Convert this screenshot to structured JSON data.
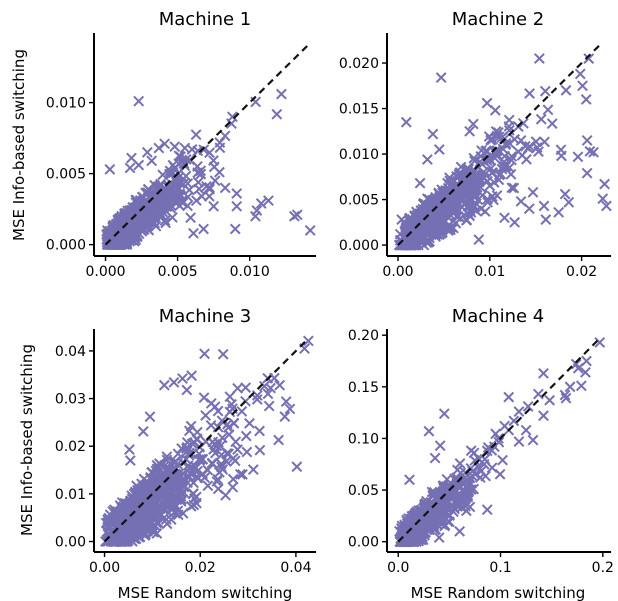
{
  "colors": {
    "marker": "#7570b3",
    "diagonal": "#111111"
  },
  "chart_data": [
    {
      "type": "scatter",
      "title": "Machine 1",
      "xlabel": "",
      "ylabel": "MSE Info-based switching",
      "xlim": [
        -0.0008,
        0.0146
      ],
      "ylim": [
        -0.0008,
        0.0149
      ],
      "xticks": [
        0.0,
        0.005,
        0.01
      ],
      "xticklabels": [
        "0.000",
        "0.005",
        "0.010"
      ],
      "yticks": [
        0.0,
        0.005,
        0.01
      ],
      "yticklabels": [
        "0.000",
        "0.005",
        "0.010"
      ],
      "diagonal": [
        0,
        0.0142
      ],
      "marker": "x",
      "cluster": {
        "n": 620,
        "xscale": 0.0025,
        "yscale": 0.0021
      },
      "points": [
        [
          0.0023,
          0.0101
        ],
        [
          0.0122,
          0.0106
        ],
        [
          0.0088,
          0.009
        ],
        [
          0.0133,
          0.0021
        ],
        [
          0.0131,
          0.002
        ],
        [
          0.0142,
          0.001
        ],
        [
          0.0113,
          0.0031
        ],
        [
          0.0108,
          0.0029
        ],
        [
          0.0105,
          0.0024
        ],
        [
          0.0104,
          0.002
        ],
        [
          0.0091,
          0.0036
        ],
        [
          0.0091,
          0.0027
        ],
        [
          0.009,
          0.0011
        ],
        [
          0.0083,
          0.004
        ],
        [
          0.0079,
          0.0051
        ],
        [
          0.0075,
          0.0027
        ],
        [
          0.007,
          0.0041
        ],
        [
          0.0064,
          0.0066
        ],
        [
          0.006,
          0.0067
        ],
        [
          0.0055,
          0.0068
        ],
        [
          0.0048,
          0.0069
        ],
        [
          0.0037,
          0.0068
        ],
        [
          0.0018,
          0.0061
        ],
        [
          0.0023,
          0.0056
        ],
        [
          0.0029,
          0.0065
        ],
        [
          0.0048,
          0.0054
        ],
        [
          0.0052,
          0.0062
        ],
        [
          0.0032,
          0.0059
        ],
        [
          0.0017,
          0.0054
        ],
        [
          0.0003,
          0.0053
        ],
        [
          0.0041,
          0.0071
        ],
        [
          0.0063,
          0.0031
        ],
        [
          0.0059,
          0.0019
        ],
        [
          0.0068,
          0.0011
        ],
        [
          0.0072,
          0.0034
        ],
        [
          0.0057,
          0.0043
        ],
        [
          0.0066,
          0.0052
        ],
        [
          0.0076,
          0.0045
        ],
        [
          0.0061,
          0.0008
        ],
        [
          0.0035,
          0.0013
        ]
      ]
    },
    {
      "type": "scatter",
      "title": "Machine 2",
      "xlabel": "",
      "ylabel": "",
      "xlim": [
        -0.0012,
        0.0232
      ],
      "ylim": [
        -0.0012,
        0.0233
      ],
      "xticks": [
        0.0,
        0.01,
        0.02
      ],
      "xticklabels": [
        "0.00",
        "0.01",
        "0.02"
      ],
      "yticks": [
        0.0,
        0.005,
        0.01,
        0.015,
        0.02
      ],
      "yticklabels": [
        "0.000",
        "0.005",
        "0.010",
        "0.015",
        "0.020"
      ],
      "diagonal": [
        0,
        0.0222
      ],
      "marker": "x",
      "cluster": {
        "n": 640,
        "xscale": 0.0052,
        "yscale": 0.0039
      },
      "points": [
        [
          0.0154,
          0.0205
        ],
        [
          0.0047,
          0.0184
        ],
        [
          0.0201,
          0.0175
        ],
        [
          0.0205,
          0.016
        ],
        [
          0.0183,
          0.017
        ],
        [
          0.0097,
          0.0156
        ],
        [
          0.0106,
          0.0148
        ],
        [
          0.0082,
          0.0133
        ],
        [
          0.0009,
          0.0135
        ],
        [
          0.0038,
          0.0122
        ],
        [
          0.0078,
          0.0125
        ],
        [
          0.0101,
          0.0115
        ],
        [
          0.0134,
          0.0115
        ],
        [
          0.0206,
          0.0115
        ],
        [
          0.0196,
          0.0097
        ],
        [
          0.0209,
          0.0103
        ],
        [
          0.0213,
          0.0102
        ],
        [
          0.0225,
          0.0067
        ],
        [
          0.0206,
          0.0079
        ],
        [
          0.0178,
          0.0098
        ],
        [
          0.0223,
          0.0051
        ],
        [
          0.0227,
          0.0043
        ],
        [
          0.0182,
          0.0056
        ],
        [
          0.0186,
          0.0047
        ],
        [
          0.0175,
          0.0036
        ],
        [
          0.0161,
          0.0028
        ],
        [
          0.0159,
          0.0043
        ],
        [
          0.0147,
          0.0058
        ],
        [
          0.0143,
          0.004
        ],
        [
          0.0134,
          0.0048
        ],
        [
          0.0124,
          0.0063
        ],
        [
          0.0127,
          0.0025
        ],
        [
          0.0116,
          0.003
        ],
        [
          0.0075,
          0.0084
        ],
        [
          0.0024,
          0.0068
        ],
        [
          0.0004,
          0.0028
        ],
        [
          0.0045,
          0.0105
        ],
        [
          0.0032,
          0.0094
        ],
        [
          0.0063,
          0.0024
        ],
        [
          0.0088,
          0.0006
        ]
      ]
    },
    {
      "type": "scatter",
      "title": "Machine 3",
      "xlabel": "MSE Random switching",
      "ylabel": "MSE Info-based switching",
      "xlim": [
        -0.0022,
        0.0442
      ],
      "ylim": [
        -0.0022,
        0.0446
      ],
      "xticks": [
        0.0,
        0.02,
        0.04
      ],
      "xticklabels": [
        "0.00",
        "0.02",
        "0.04"
      ],
      "yticks": [
        0.0,
        0.01,
        0.02,
        0.03,
        0.04
      ],
      "yticklabels": [
        "0.00",
        "0.01",
        "0.02",
        "0.03",
        "0.04"
      ],
      "diagonal": [
        0,
        0.042
      ],
      "marker": "x",
      "cluster": {
        "n": 640,
        "xscale": 0.0102,
        "yscale": 0.0104
      },
      "points": [
        [
          0.0426,
          0.0421
        ],
        [
          0.0418,
          0.0405
        ],
        [
          0.0248,
          0.0393
        ],
        [
          0.0209,
          0.0394
        ],
        [
          0.0163,
          0.0342
        ],
        [
          0.0145,
          0.0334
        ],
        [
          0.0125,
          0.0328
        ],
        [
          0.0182,
          0.0348
        ],
        [
          0.0172,
          0.0318
        ],
        [
          0.0355,
          0.0343
        ],
        [
          0.0366,
          0.0328
        ],
        [
          0.0347,
          0.0322
        ],
        [
          0.0295,
          0.0323
        ],
        [
          0.0262,
          0.0304
        ],
        [
          0.0262,
          0.0272
        ],
        [
          0.0231,
          0.0283
        ],
        [
          0.0208,
          0.0302
        ],
        [
          0.0287,
          0.0273
        ],
        [
          0.0303,
          0.0248
        ],
        [
          0.0324,
          0.0232
        ],
        [
          0.0278,
          0.0193
        ],
        [
          0.0256,
          0.0185
        ],
        [
          0.0244,
          0.0163
        ],
        [
          0.0225,
          0.0165
        ],
        [
          0.0284,
          0.0141
        ],
        [
          0.0269,
          0.0131
        ],
        [
          0.0311,
          0.0151
        ],
        [
          0.0268,
          0.0114
        ],
        [
          0.0253,
          0.0097
        ],
        [
          0.0235,
          0.0126
        ],
        [
          0.0216,
          0.0117
        ],
        [
          0.0195,
          0.0133
        ],
        [
          0.0402,
          0.0157
        ],
        [
          0.0052,
          0.0193
        ],
        [
          0.0054,
          0.017
        ],
        [
          0.0081,
          0.0231
        ],
        [
          0.0095,
          0.0262
        ],
        [
          0.0079,
          0.0042
        ],
        [
          0.0154,
          0.0056
        ],
        [
          0.0181,
          0.0074
        ]
      ]
    },
    {
      "type": "scatter",
      "title": "Machine 4",
      "xlabel": "MSE Random switching",
      "ylabel": "",
      "xlim": [
        -0.011,
        0.208
      ],
      "ylim": [
        -0.01,
        0.206
      ],
      "xticks": [
        0.0,
        0.1,
        0.2
      ],
      "xticklabels": [
        "0.0",
        "0.1",
        "0.2"
      ],
      "yticks": [
        0.0,
        0.05,
        0.1,
        0.15,
        0.2
      ],
      "yticklabels": [
        "0.00",
        "0.05",
        "0.10",
        "0.15",
        "0.20"
      ],
      "diagonal": [
        0,
        0.196
      ],
      "marker": "x",
      "cluster": {
        "n": 560,
        "xscale": 0.027,
        "yscale": 0.027
      },
      "points": [
        [
          0.197,
          0.193
        ],
        [
          0.174,
          0.172
        ],
        [
          0.184,
          0.175
        ],
        [
          0.183,
          0.164
        ],
        [
          0.176,
          0.168
        ],
        [
          0.179,
          0.151
        ],
        [
          0.168,
          0.15
        ],
        [
          0.163,
          0.142
        ],
        [
          0.164,
          0.139
        ],
        [
          0.137,
          0.143
        ],
        [
          0.148,
          0.137
        ],
        [
          0.127,
          0.131
        ],
        [
          0.142,
          0.122
        ],
        [
          0.118,
          0.126
        ],
        [
          0.113,
          0.117
        ],
        [
          0.108,
          0.108
        ],
        [
          0.104,
          0.112
        ],
        [
          0.098,
          0.1
        ],
        [
          0.094,
          0.092
        ],
        [
          0.087,
          0.088
        ],
        [
          0.084,
          0.075
        ],
        [
          0.079,
          0.08
        ],
        [
          0.071,
          0.071
        ],
        [
          0.065,
          0.062
        ],
        [
          0.058,
          0.06
        ],
        [
          0.052,
          0.052
        ],
        [
          0.045,
          0.124
        ],
        [
          0.03,
          0.107
        ],
        [
          0.041,
          0.093
        ],
        [
          0.036,
          0.081
        ],
        [
          0.142,
          0.163
        ],
        [
          0.125,
          0.108
        ],
        [
          0.118,
          0.097
        ],
        [
          0.102,
          0.079
        ],
        [
          0.087,
          0.031
        ],
        [
          0.06,
          0.01
        ],
        [
          0.04,
          0.004
        ],
        [
          0.068,
          0.045
        ],
        [
          0.011,
          0.06
        ],
        [
          0.108,
          0.14
        ]
      ]
    }
  ]
}
